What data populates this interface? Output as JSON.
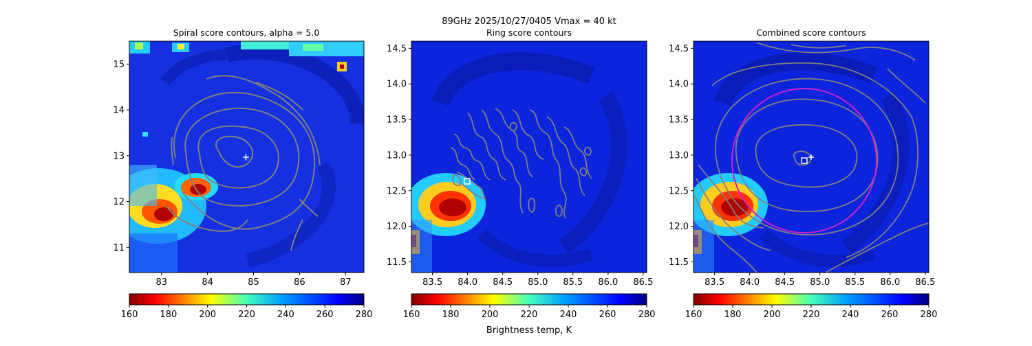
{
  "suptitle_line1": "89GHz  2025/10/27/0405    Vmax = 40 kt",
  "colorbar": {
    "label": "Brightness temp, K",
    "ticks": [
      160,
      180,
      200,
      220,
      240,
      260,
      280
    ],
    "range": [
      160,
      280
    ],
    "colormap": "jet_reversed"
  },
  "chart_data": [
    {
      "type": "heatmap",
      "title": "Spiral score contours, alpha =  5.0",
      "xlim": [
        82.3,
        87.4
      ],
      "ylim": [
        10.45,
        15.5
      ],
      "xticks": [
        83,
        84,
        85,
        86,
        87
      ],
      "yticks": [
        11,
        12,
        13,
        14,
        15
      ],
      "center_marker": {
        "symbol": "+",
        "x": 84.85,
        "y": 12.95
      },
      "cold_cores_K": [
        162,
        165
      ],
      "contour_color": "#808080"
    },
    {
      "type": "heatmap",
      "title": "Ring score contours",
      "xlim": [
        83.2,
        86.55
      ],
      "ylim": [
        11.35,
        14.6
      ],
      "xticks": [
        "83.5",
        "84.0",
        "84.5",
        "85.0",
        "85.5",
        "86.0",
        "86.5"
      ],
      "yticks": [
        "11.5",
        "12.0",
        "12.5",
        "13.0",
        "13.5",
        "14.0",
        "14.5"
      ],
      "center_marker": {
        "symbol": "square",
        "x": 83.95,
        "y": 12.62
      },
      "cold_cores_K": [
        162
      ],
      "contour_color": "#808080"
    },
    {
      "type": "heatmap",
      "title": "Combined score contours",
      "xlim": [
        83.2,
        86.55
      ],
      "ylim": [
        11.35,
        14.6
      ],
      "xticks": [
        "83.5",
        "84.0",
        "84.5",
        "85.0",
        "85.5",
        "86.0",
        "86.5"
      ],
      "yticks": [
        "11.5",
        "12.0",
        "12.5",
        "13.0",
        "13.5",
        "14.0",
        "14.5"
      ],
      "center_marker": {
        "symbol": "square",
        "x": 84.75,
        "y": 12.9
      },
      "secondary_marker": {
        "symbol": "+",
        "x": 84.85,
        "y": 12.95
      },
      "ring": {
        "cx": 84.75,
        "cy": 12.9,
        "radius_deg": 1.0,
        "color": "#cc22cc"
      },
      "cold_cores_K": [
        162
      ],
      "contour_color": "#808080"
    }
  ]
}
